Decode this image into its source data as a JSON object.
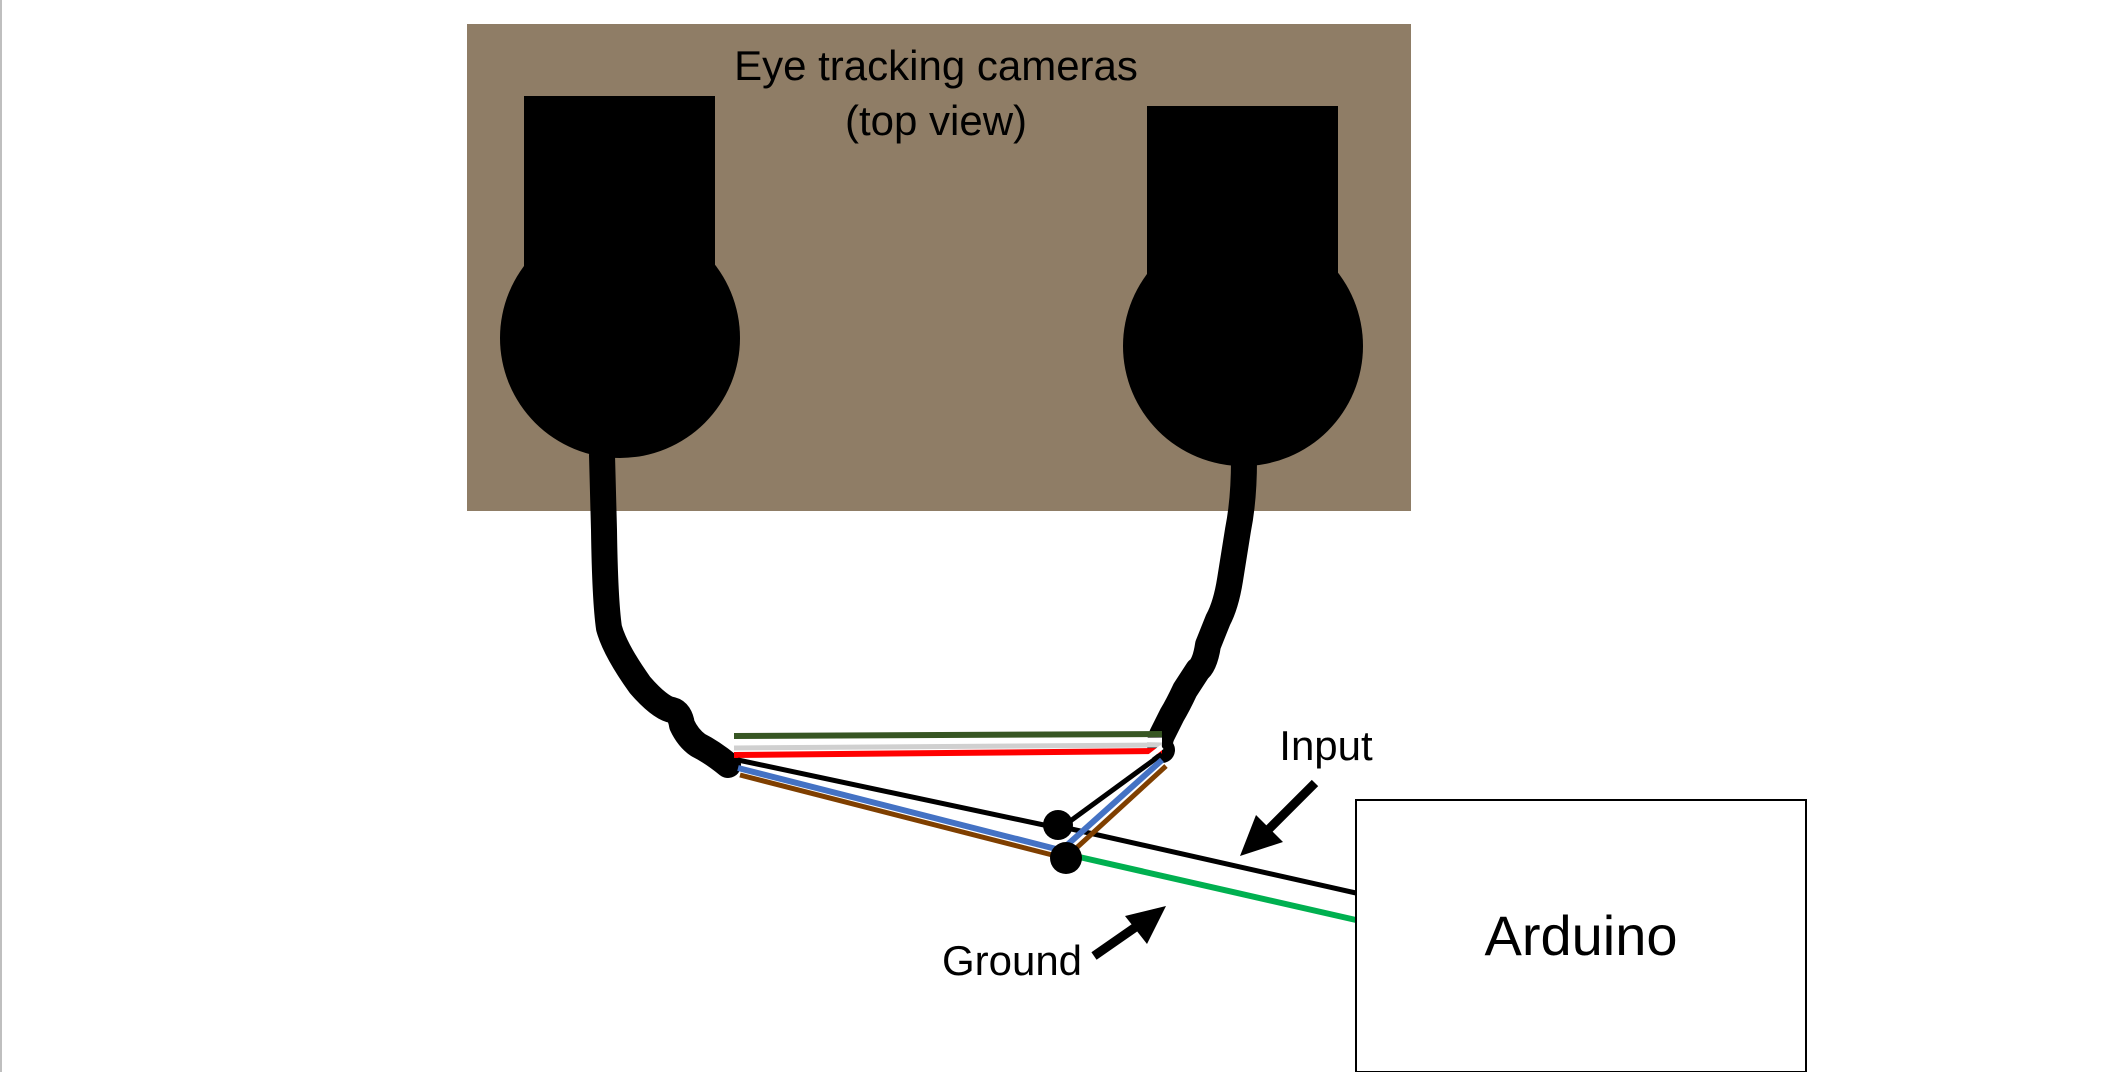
{
  "board": {
    "title_line1": "Eye tracking cameras",
    "title_line2": "(top view)",
    "color": "#8f7d66"
  },
  "labels": {
    "input": "Input",
    "ground": "Ground",
    "arduino": "Arduino"
  },
  "wire_colors": {
    "cable": "#000000",
    "green_dark": "#375623",
    "white": "#ffffff",
    "gray": "#d0d0d0",
    "red": "#ff0000",
    "blue": "#4472c4",
    "brown": "#7f3f00",
    "ground_green": "#00b050",
    "signal_black": "#000000"
  }
}
